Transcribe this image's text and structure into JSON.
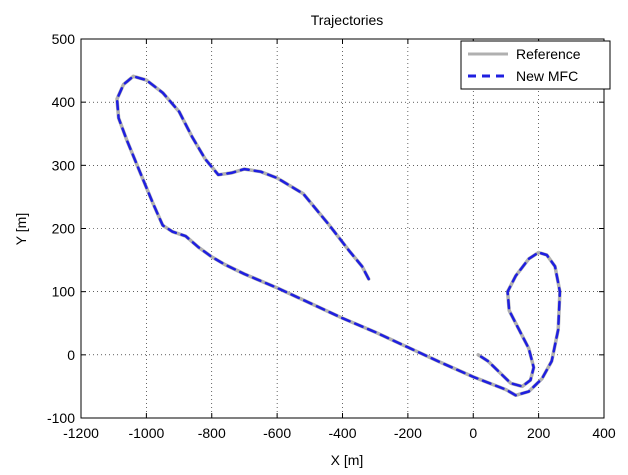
{
  "chart_data": {
    "type": "line",
    "title": "Trajectories",
    "xlabel": "X [m]",
    "ylabel": "Y [m]",
    "xlim": [
      -1200,
      400
    ],
    "ylim": [
      -100,
      500
    ],
    "xticks": [
      -1200,
      -1000,
      -800,
      -600,
      -400,
      -200,
      0,
      200,
      400
    ],
    "yticks": [
      -100,
      0,
      100,
      200,
      300,
      400,
      500
    ],
    "grid": true,
    "legend_position": "top-right",
    "series": [
      {
        "name": "Reference",
        "color": "#b0b0b0",
        "style": "solid",
        "points": [
          [
            -320,
            120
          ],
          [
            -340,
            140
          ],
          [
            -380,
            165
          ],
          [
            -440,
            205
          ],
          [
            -520,
            255
          ],
          [
            -600,
            280
          ],
          [
            -650,
            290
          ],
          [
            -700,
            294
          ],
          [
            -740,
            288
          ],
          [
            -780,
            285
          ],
          [
            -820,
            310
          ],
          [
            -860,
            345
          ],
          [
            -900,
            385
          ],
          [
            -950,
            415
          ],
          [
            -1000,
            435
          ],
          [
            -1040,
            441
          ],
          [
            -1070,
            428
          ],
          [
            -1090,
            405
          ],
          [
            -1085,
            375
          ],
          [
            -1060,
            340
          ],
          [
            -1020,
            290
          ],
          [
            -980,
            240
          ],
          [
            -950,
            205
          ],
          [
            -920,
            195
          ],
          [
            -880,
            188
          ],
          [
            -840,
            170
          ],
          [
            -800,
            155
          ],
          [
            -760,
            143
          ],
          [
            -700,
            128
          ],
          [
            -600,
            106
          ],
          [
            -500,
            82
          ],
          [
            -400,
            58
          ],
          [
            -300,
            36
          ],
          [
            -200,
            12
          ],
          [
            -100,
            -12
          ],
          [
            0,
            -35
          ],
          [
            100,
            -55
          ],
          [
            130,
            -64
          ],
          [
            170,
            -58
          ],
          [
            210,
            -38
          ],
          [
            240,
            -10
          ],
          [
            260,
            40
          ],
          [
            265,
            100
          ],
          [
            250,
            140
          ],
          [
            225,
            158
          ],
          [
            200,
            162
          ],
          [
            170,
            152
          ],
          [
            130,
            125
          ],
          [
            105,
            100
          ],
          [
            110,
            70
          ],
          [
            140,
            40
          ],
          [
            170,
            10
          ],
          [
            185,
            -20
          ],
          [
            175,
            -40
          ],
          [
            150,
            -50
          ],
          [
            115,
            -45
          ],
          [
            85,
            -30
          ],
          [
            45,
            -10
          ],
          [
            15,
            0
          ]
        ]
      },
      {
        "name": "New MFC",
        "color": "#1f1fe0",
        "style": "dashed",
        "points": [
          [
            -320,
            120
          ],
          [
            -340,
            140
          ],
          [
            -380,
            165
          ],
          [
            -440,
            205
          ],
          [
            -520,
            255
          ],
          [
            -600,
            280
          ],
          [
            -650,
            290
          ],
          [
            -700,
            294
          ],
          [
            -740,
            288
          ],
          [
            -780,
            285
          ],
          [
            -820,
            310
          ],
          [
            -860,
            345
          ],
          [
            -900,
            385
          ],
          [
            -950,
            415
          ],
          [
            -1000,
            435
          ],
          [
            -1040,
            441
          ],
          [
            -1070,
            428
          ],
          [
            -1090,
            405
          ],
          [
            -1085,
            375
          ],
          [
            -1060,
            340
          ],
          [
            -1020,
            290
          ],
          [
            -980,
            240
          ],
          [
            -950,
            205
          ],
          [
            -920,
            195
          ],
          [
            -880,
            188
          ],
          [
            -840,
            170
          ],
          [
            -800,
            155
          ],
          [
            -760,
            143
          ],
          [
            -700,
            128
          ],
          [
            -600,
            106
          ],
          [
            -500,
            82
          ],
          [
            -400,
            58
          ],
          [
            -300,
            36
          ],
          [
            -200,
            12
          ],
          [
            -100,
            -12
          ],
          [
            0,
            -35
          ],
          [
            100,
            -55
          ],
          [
            130,
            -64
          ],
          [
            170,
            -58
          ],
          [
            210,
            -38
          ],
          [
            240,
            -10
          ],
          [
            260,
            40
          ],
          [
            265,
            100
          ],
          [
            250,
            140
          ],
          [
            225,
            158
          ],
          [
            200,
            162
          ],
          [
            170,
            152
          ],
          [
            130,
            125
          ],
          [
            105,
            100
          ],
          [
            110,
            70
          ],
          [
            140,
            40
          ],
          [
            170,
            10
          ],
          [
            185,
            -20
          ],
          [
            175,
            -40
          ],
          [
            150,
            -50
          ],
          [
            115,
            -45
          ],
          [
            85,
            -30
          ],
          [
            45,
            -10
          ],
          [
            15,
            0
          ]
        ]
      }
    ]
  }
}
